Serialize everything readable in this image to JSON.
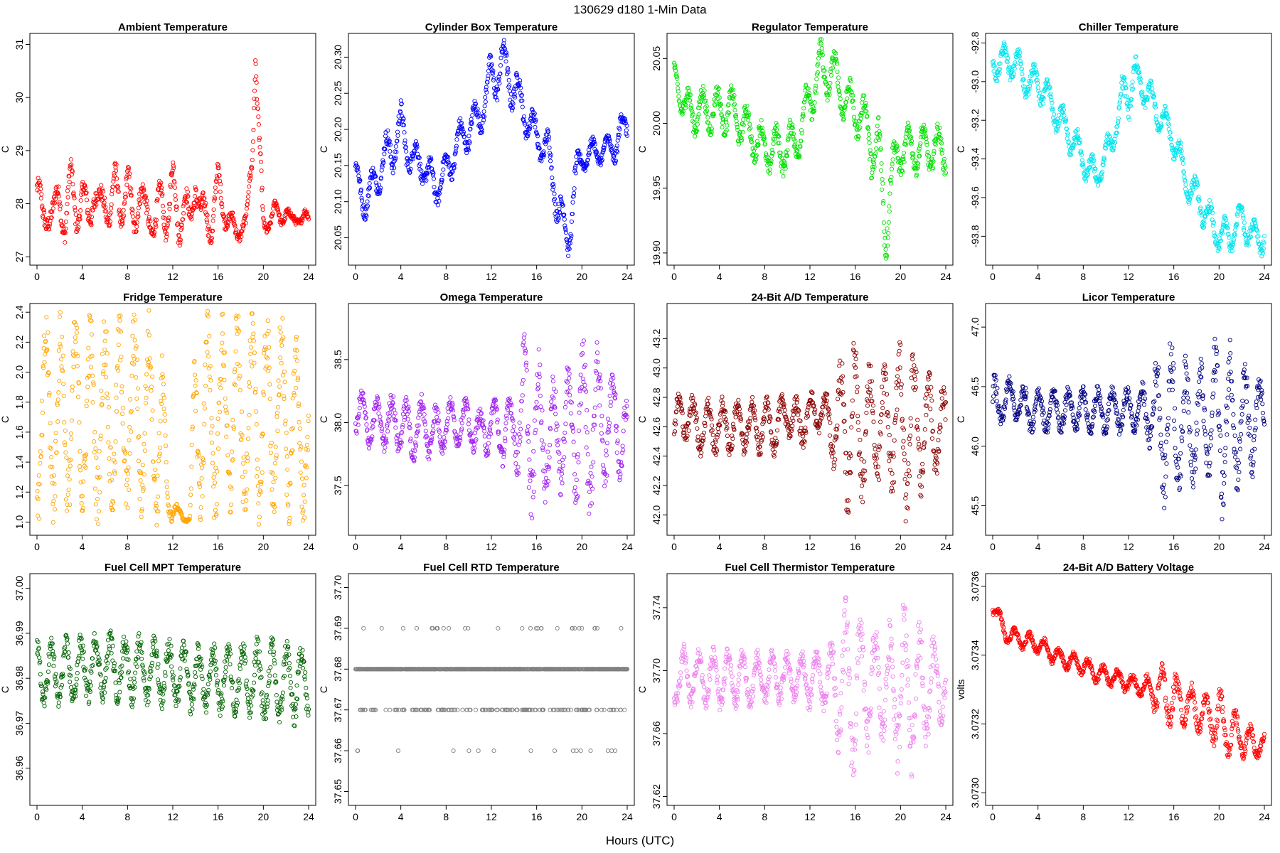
{
  "figure": {
    "title": "130629    d180    1-Min Data",
    "xlabel": "Hours (UTC)",
    "x_ticks": [
      0,
      4,
      8,
      12,
      16,
      20,
      24
    ]
  },
  "chart_data": [
    {
      "id": "ambient",
      "type": "scatter",
      "title": "Ambient Temperature",
      "ylabel": "C",
      "color": "#ff0000",
      "xlim": [
        0,
        24
      ],
      "ylim": [
        26.95,
        31.1
      ],
      "y_ticks": [
        27,
        28,
        29,
        30,
        31
      ],
      "y_tick_labels": [
        "27",
        "28",
        "29",
        "30",
        "31"
      ],
      "x": [
        0,
        0.5,
        1,
        1.5,
        2,
        2.5,
        3,
        3.5,
        4,
        4.5,
        5,
        5.5,
        6,
        6.5,
        7,
        7.5,
        8,
        8.5,
        9,
        9.5,
        10,
        10.5,
        11,
        11.5,
        12,
        12.5,
        13,
        13.5,
        14,
        14.5,
        15,
        15.5,
        16,
        16.5,
        17,
        17.5,
        18,
        18.5,
        19,
        19.3,
        19.6,
        20,
        20.5,
        21,
        21.5,
        22,
        22.5,
        23,
        23.5,
        24
      ],
      "y": [
        28.3,
        27.6,
        28.0,
        27.7,
        28.2,
        27.6,
        28.4,
        27.9,
        28.1,
        27.7,
        28.3,
        27.8,
        28.2,
        27.8,
        28.4,
        27.9,
        28.3,
        27.7,
        28.2,
        27.8,
        27.9,
        27.5,
        28.2,
        27.7,
        28.4,
        27.6,
        28.1,
        27.5,
        28.6,
        27.6,
        27.9,
        27.6,
        28.4,
        28.0,
        27.6,
        27.5,
        27.6,
        27.5,
        29.0,
        30.9,
        29.2,
        27.5,
        27.7,
        27.9,
        27.7,
        27.9,
        27.6,
        27.8,
        27.7,
        27.7
      ],
      "spread": [
        0.5,
        0.5,
        0.5,
        0.5,
        0.5,
        0.5,
        0.5,
        0.5,
        0.5,
        0.5,
        0.5,
        0.5,
        0.5,
        0.5,
        0.5,
        0.5,
        0.5,
        0.5,
        0.5,
        0.5,
        0.5,
        0.5,
        0.5,
        0.5,
        0.5,
        0.5,
        0.5,
        0.5,
        0.5,
        0.5,
        0.5,
        0.5,
        0.4,
        0.4,
        0.3,
        0.3,
        0.3,
        0.3,
        0.6,
        0.3,
        0.5,
        0.3,
        0.2,
        0.2,
        0.2,
        0.2,
        0.2,
        0.2,
        0.2,
        0.2
      ]
    },
    {
      "id": "cylinder-box",
      "type": "scatter",
      "title": "Cylinder Box Temperature",
      "ylabel": "C",
      "color": "#0000ff",
      "xlim": [
        0,
        24
      ],
      "ylim": [
        20.02,
        20.325
      ],
      "y_ticks": [
        20.05,
        20.1,
        20.15,
        20.2,
        20.25,
        20.3
      ],
      "y_tick_labels": [
        "20.05",
        "20.10",
        "20.15",
        "20.20",
        "20.25",
        "20.30"
      ],
      "x": [
        0,
        1,
        2,
        3,
        4,
        5,
        6,
        7,
        8,
        9,
        10,
        11,
        12,
        13,
        14,
        15,
        16,
        17,
        18,
        18.8,
        19.3,
        20,
        21,
        22,
        23,
        24
      ],
      "y": [
        20.13,
        20.1,
        20.14,
        20.17,
        20.2,
        20.16,
        20.15,
        20.12,
        20.14,
        20.18,
        20.2,
        20.22,
        20.27,
        20.29,
        20.26,
        20.22,
        20.19,
        20.17,
        20.09,
        20.04,
        20.12,
        20.16,
        20.17,
        20.17,
        20.18,
        20.21
      ],
      "spread": [
        0.03,
        0.03,
        0.03,
        0.04,
        0.04,
        0.03,
        0.03,
        0.03,
        0.03,
        0.03,
        0.03,
        0.03,
        0.04,
        0.04,
        0.04,
        0.03,
        0.03,
        0.03,
        0.04,
        0.02,
        0.04,
        0.02,
        0.02,
        0.02,
        0.03,
        0.03
      ]
    },
    {
      "id": "regulator",
      "type": "scatter",
      "title": "Regulator Temperature",
      "ylabel": "C",
      "color": "#00e000",
      "xlim": [
        0,
        24
      ],
      "ylim": [
        19.895,
        20.065
      ],
      "y_ticks": [
        19.9,
        19.95,
        20.0,
        20.05
      ],
      "y_tick_labels": [
        "19.90",
        "19.95",
        "20.00",
        "20.05"
      ],
      "x": [
        0,
        1,
        2,
        3,
        4,
        5,
        6,
        7,
        8,
        9,
        10,
        11,
        12,
        13,
        14,
        15,
        16,
        17,
        18,
        18.7,
        19.5,
        20,
        21,
        22,
        23,
        24
      ],
      "y": [
        20.04,
        20.01,
        20.01,
        20.01,
        20.01,
        20.01,
        20.0,
        19.99,
        19.98,
        19.98,
        19.98,
        19.99,
        20.02,
        20.04,
        20.04,
        20.02,
        20.01,
        20.0,
        19.97,
        19.93,
        19.97,
        19.98,
        19.98,
        19.98,
        19.98,
        19.98
      ],
      "spread": [
        0.01,
        0.02,
        0.02,
        0.02,
        0.02,
        0.02,
        0.02,
        0.02,
        0.02,
        0.02,
        0.02,
        0.02,
        0.02,
        0.03,
        0.02,
        0.02,
        0.02,
        0.02,
        0.04,
        0.04,
        0.02,
        0.02,
        0.02,
        0.02,
        0.02,
        0.02
      ]
    },
    {
      "id": "chiller",
      "type": "scatter",
      "title": "Chiller Temperature",
      "ylabel": "C",
      "color": "#00e5ee",
      "xlim": [
        0,
        24
      ],
      "ylim": [
        -93.92,
        -92.78
      ],
      "y_ticks": [
        -93.8,
        -93.6,
        -93.4,
        -93.2,
        -93.0,
        -92.8
      ],
      "y_tick_labels": [
        "-93.8",
        "-93.6",
        "-93.4",
        "-93.2",
        "-93.0",
        "-92.8"
      ],
      "x": [
        0,
        1,
        2,
        3,
        4,
        5,
        6,
        7,
        8,
        9,
        10,
        11,
        12,
        13,
        14,
        15,
        16,
        17,
        18,
        19,
        20,
        21,
        22,
        23,
        24
      ],
      "y": [
        -92.9,
        -92.9,
        -92.9,
        -93.0,
        -93.0,
        -93.1,
        -93.2,
        -93.3,
        -93.4,
        -93.5,
        -93.4,
        -93.2,
        -93.0,
        -93.0,
        -93.1,
        -93.2,
        -93.3,
        -93.5,
        -93.6,
        -93.7,
        -93.8,
        -93.8,
        -93.7,
        -93.8,
        -93.8
      ],
      "spread": [
        0.1,
        0.1,
        0.1,
        0.1,
        0.1,
        0.1,
        0.1,
        0.1,
        0.1,
        0.1,
        0.1,
        0.1,
        0.2,
        0.1,
        0.1,
        0.1,
        0.1,
        0.1,
        0.1,
        0.1,
        0.1,
        0.1,
        0.1,
        0.1,
        0.1
      ]
    },
    {
      "id": "fridge",
      "type": "scatter",
      "title": "Fridge Temperature",
      "ylabel": "C",
      "color": "#ffa500",
      "xlim": [
        0,
        24
      ],
      "ylim": [
        0.95,
        2.42
      ],
      "y_ticks": [
        1.0,
        1.2,
        1.4,
        1.6,
        1.8,
        2.0,
        2.2,
        2.4
      ],
      "y_tick_labels": [
        "1.0",
        "1.2",
        "1.4",
        "1.6",
        "1.8",
        "2.0",
        "2.2",
        "2.4"
      ],
      "x": [
        0,
        2,
        4,
        6,
        8,
        10,
        11,
        11.5,
        12,
        12.5,
        13,
        13.5,
        14,
        16,
        18,
        20,
        22,
        24
      ],
      "y": [
        1.7,
        1.7,
        1.7,
        1.7,
        1.7,
        1.7,
        1.6,
        1.2,
        1.1,
        1.05,
        1.03,
        1.02,
        1.7,
        1.7,
        1.7,
        1.7,
        1.7,
        1.5
      ],
      "spread": [
        0.7,
        0.7,
        0.7,
        0.7,
        0.7,
        0.7,
        0.7,
        0.2,
        0.1,
        0.05,
        0.03,
        0.02,
        0.7,
        0.7,
        0.7,
        0.7,
        0.7,
        0.5
      ]
    },
    {
      "id": "omega",
      "type": "scatter",
      "title": "Omega Temperature",
      "ylabel": "C",
      "color": "#a020f0",
      "xlim": [
        0,
        24
      ],
      "ylim": [
        37.15,
        38.9
      ],
      "y_ticks": [
        37.5,
        38.0,
        38.5
      ],
      "y_tick_labels": [
        "37.5",
        "38.0",
        "38.5"
      ],
      "x": [
        0,
        1,
        2,
        3,
        4,
        5,
        6,
        7,
        8,
        9,
        10,
        11,
        12,
        13,
        14,
        15,
        16,
        17,
        18,
        19,
        20,
        21,
        22,
        23,
        24
      ],
      "y": [
        38.1,
        38.0,
        38.0,
        38.0,
        38.0,
        37.9,
        38.0,
        37.9,
        38.0,
        38.0,
        38.0,
        37.9,
        38.0,
        37.9,
        38.0,
        38.0,
        37.9,
        37.9,
        37.9,
        38.0,
        37.9,
        38.0,
        38.0,
        38.0,
        37.9
      ],
      "spread": [
        0.25,
        0.2,
        0.2,
        0.25,
        0.25,
        0.25,
        0.25,
        0.25,
        0.2,
        0.2,
        0.2,
        0.2,
        0.25,
        0.25,
        0.3,
        0.75,
        0.7,
        0.5,
        0.5,
        0.5,
        0.8,
        0.7,
        0.5,
        0.5,
        0.3
      ]
    },
    {
      "id": "ad-24bit",
      "type": "scatter",
      "title": "24-Bit A/D Temperature",
      "ylabel": "C",
      "color": "#8b0000",
      "xlim": [
        0,
        24
      ],
      "ylim": [
        41.9,
        43.4
      ],
      "y_ticks": [
        42.0,
        42.2,
        42.4,
        42.6,
        42.8,
        43.0,
        43.2
      ],
      "y_tick_labels": [
        "42.0",
        "42.2",
        "42.4",
        "42.6",
        "42.8",
        "43.0",
        "43.2"
      ],
      "x": [
        0,
        1,
        2,
        3,
        4,
        5,
        6,
        7,
        8,
        9,
        10,
        11,
        12,
        13,
        14,
        15,
        16,
        17,
        18,
        19,
        20,
        21,
        22,
        23,
        24
      ],
      "y": [
        42.6,
        42.7,
        42.6,
        42.6,
        42.6,
        42.6,
        42.6,
        42.6,
        42.6,
        42.6,
        42.7,
        42.6,
        42.7,
        42.7,
        42.6,
        42.6,
        42.6,
        42.6,
        42.6,
        42.6,
        42.6,
        42.6,
        42.6,
        42.6,
        42.6
      ],
      "spread": [
        0.2,
        0.2,
        0.2,
        0.2,
        0.2,
        0.2,
        0.2,
        0.2,
        0.2,
        0.2,
        0.15,
        0.2,
        0.15,
        0.15,
        0.25,
        0.6,
        0.65,
        0.45,
        0.45,
        0.4,
        0.7,
        0.65,
        0.45,
        0.4,
        0.25
      ]
    },
    {
      "id": "licor",
      "type": "scatter",
      "title": "Licor Temperature",
      "ylabel": "C",
      "color": "#000080",
      "xlim": [
        0,
        24
      ],
      "ylim": [
        45.3,
        47.15
      ],
      "y_ticks": [
        45.5,
        46.0,
        46.5,
        47.0
      ],
      "y_tick_labels": [
        "45.5",
        "46.0",
        "46.5",
        "47.0"
      ],
      "x": [
        0,
        1,
        2,
        3,
        4,
        5,
        6,
        7,
        8,
        9,
        10,
        11,
        12,
        13,
        14,
        15,
        16,
        17,
        18,
        19,
        20,
        21,
        22,
        23,
        24
      ],
      "y": [
        46.3,
        46.4,
        46.4,
        46.3,
        46.3,
        46.3,
        46.3,
        46.3,
        46.3,
        46.3,
        46.3,
        46.3,
        46.3,
        46.3,
        46.3,
        46.2,
        46.2,
        46.2,
        46.2,
        46.2,
        46.2,
        46.2,
        46.2,
        46.2,
        46.3
      ],
      "spread": [
        0.3,
        0.2,
        0.2,
        0.2,
        0.2,
        0.2,
        0.2,
        0.2,
        0.2,
        0.2,
        0.2,
        0.2,
        0.2,
        0.2,
        0.35,
        0.7,
        0.75,
        0.55,
        0.55,
        0.5,
        0.85,
        0.7,
        0.5,
        0.5,
        0.2
      ]
    },
    {
      "id": "fuel-cell-mpt",
      "type": "scatter",
      "title": "Fuel Cell MPT Temperature",
      "ylabel": "C",
      "color": "#006400",
      "xlim": [
        0,
        24
      ],
      "ylim": [
        36.953,
        37.002
      ],
      "y_ticks": [
        36.96,
        36.97,
        36.98,
        36.99,
        37.0
      ],
      "y_tick_labels": [
        "36.96",
        "36.97",
        "36.98",
        "36.99",
        "37.00"
      ],
      "x": [
        0,
        2,
        4,
        6,
        8,
        10,
        12,
        14,
        16,
        18,
        20,
        22,
        24
      ],
      "y": [
        36.981,
        36.981,
        36.982,
        36.983,
        36.982,
        36.982,
        36.981,
        36.98,
        36.98,
        36.98,
        36.979,
        36.979,
        36.979
      ],
      "spread": [
        0.008,
        0.008,
        0.008,
        0.008,
        0.008,
        0.008,
        0.008,
        0.008,
        0.008,
        0.009,
        0.01,
        0.01,
        0.01
      ]
    },
    {
      "id": "fuel-cell-rtd",
      "type": "scatter",
      "title": "Fuel Cell RTD Temperature",
      "ylabel": "C",
      "color": "#808080",
      "xlim": [
        0,
        24
      ],
      "ylim": [
        37.648,
        37.702
      ],
      "y_ticks": [
        37.65,
        37.66,
        37.67,
        37.68,
        37.69,
        37.7
      ],
      "y_tick_labels": [
        "37.65",
        "37.66",
        "37.67",
        "37.68",
        "37.69",
        "37.70"
      ],
      "levels": [
        37.68,
        37.67,
        37.69,
        37.66
      ],
      "level_frac": [
        0.7,
        0.22,
        0.05,
        0.03
      ]
    },
    {
      "id": "fuel-cell-thermistor",
      "type": "scatter",
      "title": "Fuel Cell Thermistor Temperature",
      "ylabel": "C",
      "color": "#ee82ee",
      "xlim": [
        0,
        24
      ],
      "ylim": [
        37.618,
        37.758
      ],
      "y_ticks": [
        37.62,
        37.66,
        37.7,
        37.74
      ],
      "y_tick_labels": [
        "37.62",
        "37.66",
        "37.70",
        "37.74"
      ],
      "x": [
        0,
        1,
        2,
        3,
        4,
        5,
        6,
        7,
        8,
        9,
        10,
        11,
        12,
        13,
        14,
        15,
        16,
        17,
        18,
        19,
        20,
        21,
        22,
        23,
        24
      ],
      "y": [
        37.695,
        37.697,
        37.695,
        37.695,
        37.695,
        37.695,
        37.695,
        37.693,
        37.695,
        37.695,
        37.696,
        37.696,
        37.695,
        37.695,
        37.692,
        37.69,
        37.688,
        37.69,
        37.69,
        37.69,
        37.69,
        37.69,
        37.69,
        37.69,
        37.69
      ],
      "spread": [
        0.02,
        0.02,
        0.018,
        0.02,
        0.02,
        0.02,
        0.02,
        0.02,
        0.018,
        0.018,
        0.016,
        0.016,
        0.02,
        0.02,
        0.03,
        0.055,
        0.06,
        0.045,
        0.04,
        0.04,
        0.06,
        0.055,
        0.04,
        0.035,
        0.02
      ]
    },
    {
      "id": "battery-voltage",
      "type": "scatter",
      "title": "24-Bit A/D Battery Voltage",
      "ylabel": "volts",
      "color": "#ff0000",
      "xlim": [
        0,
        24
      ],
      "ylim": [
        3.07298,
        3.07362
      ],
      "y_ticks": [
        3.073,
        3.0732,
        3.0734,
        3.0736
      ],
      "y_tick_labels": [
        "3.0730",
        "3.0732",
        "3.0734",
        "3.0736"
      ],
      "x": [
        0,
        1,
        2,
        3,
        4,
        5,
        6,
        7,
        8,
        9,
        10,
        11,
        12,
        13,
        14,
        15,
        16,
        17,
        18,
        19,
        20,
        21,
        22,
        23,
        24
      ],
      "y": [
        3.07355,
        3.07347,
        3.07345,
        3.07344,
        3.07343,
        3.07341,
        3.07339,
        3.07338,
        3.07337,
        3.07335,
        3.07334,
        3.07333,
        3.07332,
        3.07331,
        3.0733,
        3.07329,
        3.07327,
        3.07326,
        3.07324,
        3.07323,
        3.07321,
        3.07318,
        3.07316,
        3.07314,
        3.07314
      ],
      "spread": [
        3e-05,
        3e-05,
        3e-05,
        3e-05,
        3e-05,
        3e-05,
        3e-05,
        3e-05,
        3e-05,
        3e-05,
        3e-05,
        3e-05,
        3e-05,
        3e-05,
        5e-05,
        9e-05,
        9e-05,
        7e-05,
        7e-05,
        6e-05,
        0.0001,
        8e-05,
        6e-05,
        5e-05,
        3e-05
      ]
    }
  ]
}
